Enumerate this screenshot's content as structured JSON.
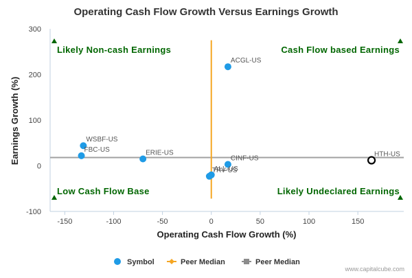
{
  "chart_data": {
    "type": "scatter",
    "title": "Operating Cash Flow Growth Versus Earnings Growth",
    "xlabel": "Operating Cash Flow Growth (%)",
    "ylabel": "Earnings Growth (%)",
    "xlim": [
      -165,
      197
    ],
    "ylim": [
      -100,
      300
    ],
    "xticks": [
      -150,
      -100,
      -50,
      0,
      50,
      100,
      150
    ],
    "yticks": [
      -100,
      0,
      100,
      200,
      300
    ],
    "grid": false,
    "points": [
      {
        "label": "ACGL-US",
        "x": 17,
        "y": 217,
        "marker": "dot"
      },
      {
        "label": "WSBF-US",
        "x": -131,
        "y": 44,
        "marker": "dot"
      },
      {
        "label": "FBC-US",
        "x": -133,
        "y": 22,
        "marker": "dot"
      },
      {
        "label": "ERIE-US",
        "x": -70,
        "y": 15,
        "marker": "dot"
      },
      {
        "label": "CINF-US",
        "x": 17,
        "y": 3,
        "marker": "dot"
      },
      {
        "label": "ALL-US",
        "x": 0,
        "y": -20,
        "marker": "dot"
      },
      {
        "label": "TRV-US",
        "x": -2,
        "y": -23,
        "marker": "dot"
      },
      {
        "label": "HTH-US",
        "x": 164,
        "y": 12,
        "marker": "ring"
      }
    ],
    "peer_median": {
      "x": 0,
      "y": 18
    },
    "quadrants": {
      "top_left": "Likely Non-cash Earnings",
      "top_right": "Cash Flow based Earnings",
      "bottom_left": "Low Cash Flow Base",
      "bottom_right": "Likely Undeclared Earnings"
    },
    "legend": {
      "placement": "bottom-center",
      "items": [
        {
          "label": "Symbol",
          "marker": "circle",
          "color": "#1f9be6"
        },
        {
          "label": "Peer Median",
          "marker": "diamond-line",
          "color": "#f5a623"
        },
        {
          "label": "Peer Median",
          "marker": "square-line",
          "color": "#8c8c8c"
        }
      ]
    },
    "colors": {
      "point": "#1f9be6",
      "quadrant_text": "#006600",
      "vertical_median": "#f5a623",
      "horizontal_median": "#a0a0a0",
      "axis": "#c0d0e0"
    }
  },
  "credit": "www.capitalcube.com"
}
